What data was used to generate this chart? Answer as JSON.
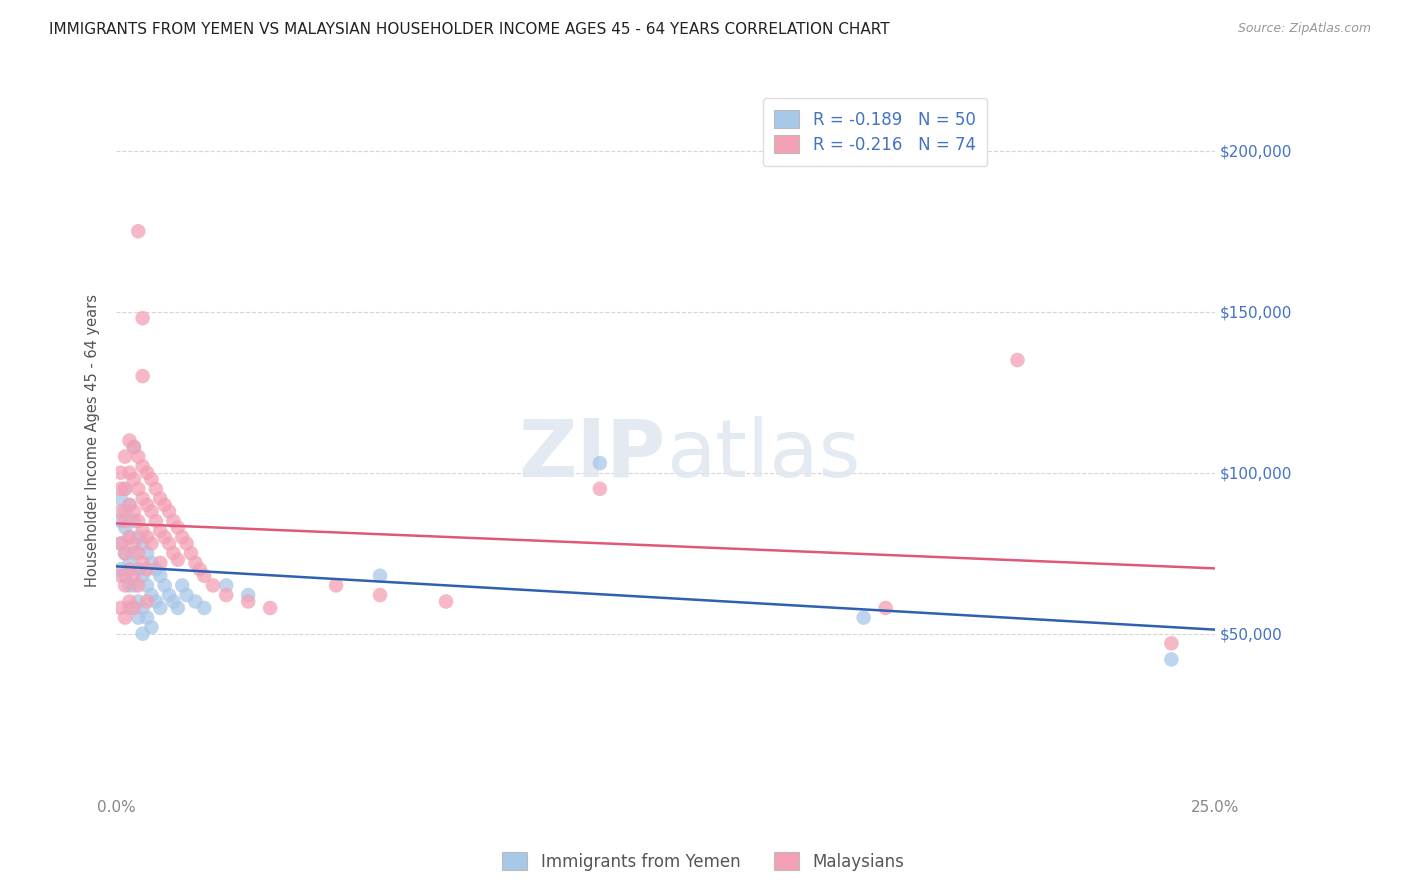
{
  "title": "IMMIGRANTS FROM YEMEN VS MALAYSIAN HOUSEHOLDER INCOME AGES 45 - 64 YEARS CORRELATION CHART",
  "source": "Source: ZipAtlas.com",
  "ylabel": "Householder Income Ages 45 - 64 years",
  "legend_bottom": [
    "Immigrants from Yemen",
    "Malaysians"
  ],
  "legend_line1": "R = -0.189   N = 50",
  "legend_line2": "R = -0.216   N = 74",
  "color_yemen": "#a8c8e8",
  "color_malaysian": "#f4a0b5",
  "color_line_yemen": "#3060b0",
  "color_line_malaysian": "#e05878",
  "color_text_blue": "#4472c4",
  "ytick_labels": [
    "$50,000",
    "$100,000",
    "$150,000",
    "$200,000"
  ],
  "ytick_values": [
    50000,
    100000,
    150000,
    200000
  ],
  "ylim": [
    0,
    220000
  ],
  "xlim": [
    0.0,
    0.25
  ],
  "background": "#ffffff",
  "yemen_points": [
    [
      0.001,
      85000
    ],
    [
      0.001,
      78000
    ],
    [
      0.001,
      92000
    ],
    [
      0.001,
      70000
    ],
    [
      0.002,
      88000
    ],
    [
      0.002,
      95000
    ],
    [
      0.002,
      75000
    ],
    [
      0.002,
      83000
    ],
    [
      0.002,
      68000
    ],
    [
      0.003,
      90000
    ],
    [
      0.003,
      80000
    ],
    [
      0.003,
      72000
    ],
    [
      0.003,
      65000
    ],
    [
      0.003,
      58000
    ],
    [
      0.004,
      85000
    ],
    [
      0.004,
      75000
    ],
    [
      0.004,
      65000
    ],
    [
      0.004,
      108000
    ],
    [
      0.005,
      80000
    ],
    [
      0.005,
      70000
    ],
    [
      0.005,
      60000
    ],
    [
      0.005,
      55000
    ],
    [
      0.006,
      78000
    ],
    [
      0.006,
      68000
    ],
    [
      0.006,
      58000
    ],
    [
      0.006,
      50000
    ],
    [
      0.007,
      75000
    ],
    [
      0.007,
      65000
    ],
    [
      0.007,
      55000
    ],
    [
      0.008,
      72000
    ],
    [
      0.008,
      62000
    ],
    [
      0.008,
      52000
    ],
    [
      0.009,
      70000
    ],
    [
      0.009,
      60000
    ],
    [
      0.01,
      68000
    ],
    [
      0.01,
      58000
    ],
    [
      0.011,
      65000
    ],
    [
      0.012,
      62000
    ],
    [
      0.013,
      60000
    ],
    [
      0.014,
      58000
    ],
    [
      0.015,
      65000
    ],
    [
      0.016,
      62000
    ],
    [
      0.018,
      60000
    ],
    [
      0.02,
      58000
    ],
    [
      0.025,
      65000
    ],
    [
      0.03,
      62000
    ],
    [
      0.06,
      68000
    ],
    [
      0.11,
      103000
    ],
    [
      0.17,
      55000
    ],
    [
      0.24,
      42000
    ]
  ],
  "malaysian_points": [
    [
      0.001,
      100000
    ],
    [
      0.001,
      95000
    ],
    [
      0.001,
      88000
    ],
    [
      0.001,
      78000
    ],
    [
      0.001,
      68000
    ],
    [
      0.001,
      58000
    ],
    [
      0.002,
      105000
    ],
    [
      0.002,
      95000
    ],
    [
      0.002,
      85000
    ],
    [
      0.002,
      75000
    ],
    [
      0.002,
      65000
    ],
    [
      0.002,
      55000
    ],
    [
      0.003,
      110000
    ],
    [
      0.003,
      100000
    ],
    [
      0.003,
      90000
    ],
    [
      0.003,
      80000
    ],
    [
      0.003,
      70000
    ],
    [
      0.003,
      60000
    ],
    [
      0.004,
      108000
    ],
    [
      0.004,
      98000
    ],
    [
      0.004,
      88000
    ],
    [
      0.004,
      78000
    ],
    [
      0.004,
      68000
    ],
    [
      0.004,
      58000
    ],
    [
      0.005,
      105000
    ],
    [
      0.005,
      95000
    ],
    [
      0.005,
      85000
    ],
    [
      0.005,
      75000
    ],
    [
      0.005,
      65000
    ],
    [
      0.005,
      175000
    ],
    [
      0.006,
      130000
    ],
    [
      0.006,
      102000
    ],
    [
      0.006,
      92000
    ],
    [
      0.006,
      82000
    ],
    [
      0.006,
      72000
    ],
    [
      0.006,
      148000
    ],
    [
      0.007,
      100000
    ],
    [
      0.007,
      90000
    ],
    [
      0.007,
      80000
    ],
    [
      0.007,
      70000
    ],
    [
      0.007,
      60000
    ],
    [
      0.008,
      98000
    ],
    [
      0.008,
      88000
    ],
    [
      0.008,
      78000
    ],
    [
      0.009,
      95000
    ],
    [
      0.009,
      85000
    ],
    [
      0.01,
      92000
    ],
    [
      0.01,
      82000
    ],
    [
      0.01,
      72000
    ],
    [
      0.011,
      90000
    ],
    [
      0.011,
      80000
    ],
    [
      0.012,
      88000
    ],
    [
      0.012,
      78000
    ],
    [
      0.013,
      85000
    ],
    [
      0.013,
      75000
    ],
    [
      0.014,
      83000
    ],
    [
      0.014,
      73000
    ],
    [
      0.015,
      80000
    ],
    [
      0.016,
      78000
    ],
    [
      0.017,
      75000
    ],
    [
      0.018,
      72000
    ],
    [
      0.019,
      70000
    ],
    [
      0.02,
      68000
    ],
    [
      0.022,
      65000
    ],
    [
      0.025,
      62000
    ],
    [
      0.03,
      60000
    ],
    [
      0.035,
      58000
    ],
    [
      0.05,
      65000
    ],
    [
      0.06,
      62000
    ],
    [
      0.075,
      60000
    ],
    [
      0.11,
      95000
    ],
    [
      0.175,
      58000
    ],
    [
      0.205,
      135000
    ],
    [
      0.24,
      47000
    ]
  ]
}
